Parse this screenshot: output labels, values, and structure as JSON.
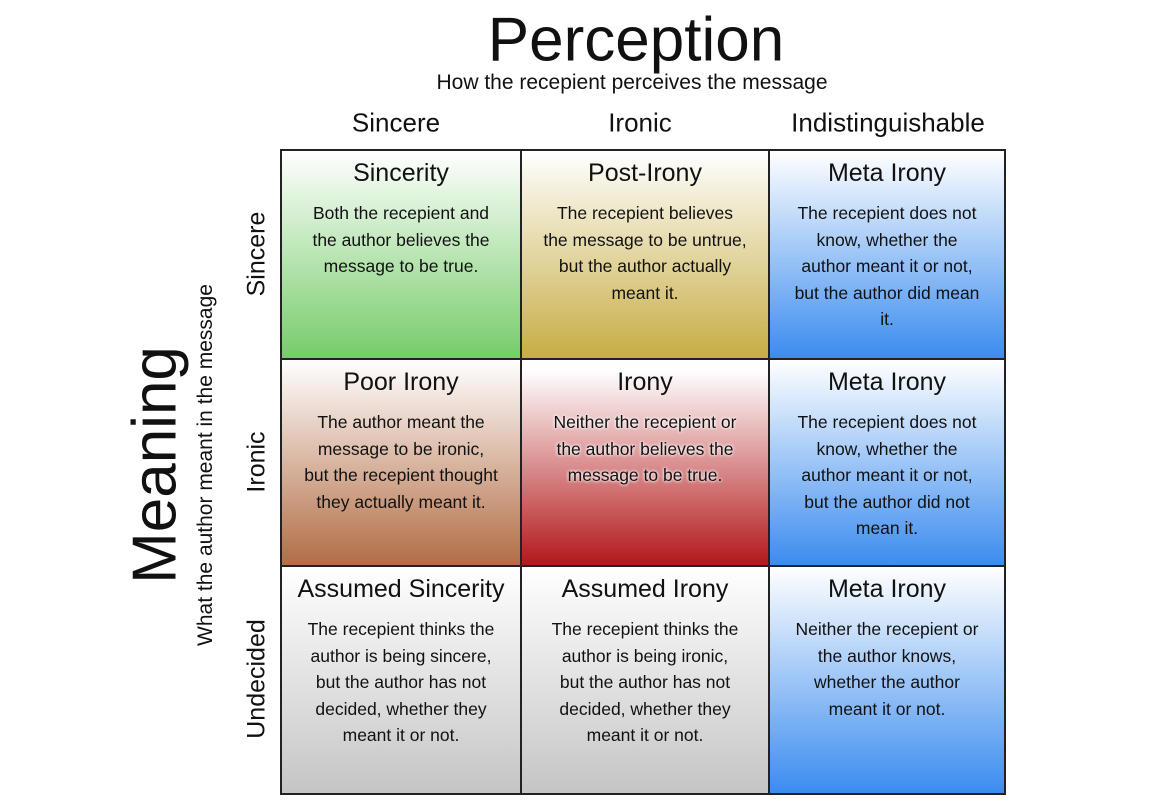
{
  "header": {
    "title": "Perception",
    "subtitle": "How the recepient perceives the message"
  },
  "side": {
    "title": "Meaning",
    "subtitle": "What the author meant in the message"
  },
  "columns": [
    "Sincere",
    "Ironic",
    "Indistinguishable"
  ],
  "rows": [
    {
      "label": "Sincere",
      "cells": [
        {
          "title": "Sincerity",
          "lines": [
            "Both the recepient and",
            "the author believes the",
            "message to be true."
          ]
        },
        {
          "title": "Post-Irony",
          "lines": [
            "The recepient believes",
            "the message to be untrue,",
            "but the author actually",
            "meant it."
          ]
        },
        {
          "title": "Meta Irony",
          "lines": [
            "The recepient does not",
            "know, whether the",
            "author meant it or not,",
            "but the author did mean",
            "it."
          ]
        }
      ]
    },
    {
      "label": "Ironic",
      "cells": [
        {
          "title": "Poor Irony",
          "lines": [
            "The author meant the",
            "message to be ironic,",
            "but the recepient thought",
            "they actually meant it."
          ]
        },
        {
          "title": "Irony",
          "lines": [
            "Neither the recepient or",
            "the author believes the",
            "message to be true."
          ]
        },
        {
          "title": "Meta Irony",
          "lines": [
            "The recepient does not",
            "know, whether the",
            "author meant it or not,",
            "but the author did not",
            "mean it."
          ]
        }
      ]
    },
    {
      "label": "Undecided",
      "cells": [
        {
          "title": "Assumed Sincerity",
          "lines": [
            "The recepient thinks the",
            "author is being sincere,",
            "but the author has not",
            "decided, whether they",
            "meant it or not."
          ]
        },
        {
          "title": "Assumed Irony",
          "lines": [
            "The recepient thinks the",
            "author is being ironic,",
            "but the author has not",
            "decided, whether they",
            "meant it or not."
          ]
        },
        {
          "title": "Meta Irony",
          "lines": [
            "Neither the recepient or",
            "the author knows,",
            "whether the author",
            "meant it or not."
          ]
        }
      ]
    }
  ]
}
